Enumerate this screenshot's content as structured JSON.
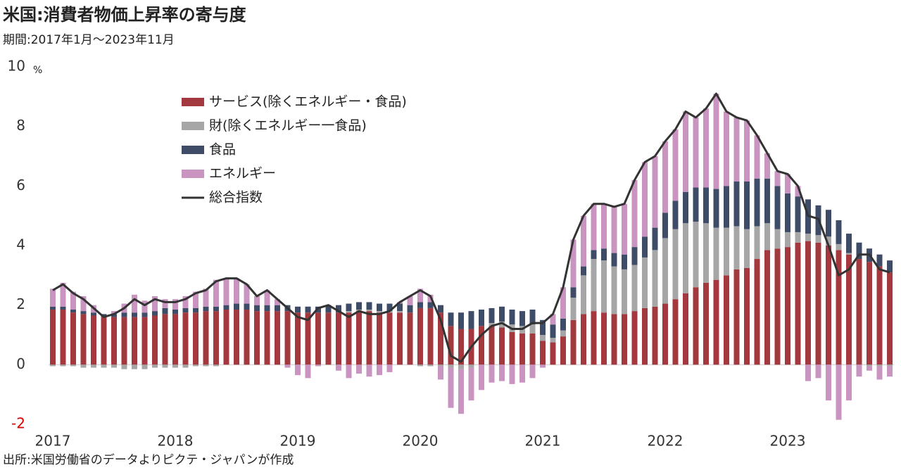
{
  "chart_data": {
    "type": "bar",
    "stacked": true,
    "title": "米国:消費者物価上昇率の寄与度",
    "subtitle": "期間:2017年1月〜2023年11月",
    "y_unit": "%",
    "source": "出所:米国労働省のデータよりピクテ・ジャパンが作成",
    "ylim": [
      -2,
      10
    ],
    "yticks": [
      -2,
      0,
      2,
      4,
      6,
      8,
      10
    ],
    "categories": [
      "2017",
      null,
      null,
      null,
      null,
      null,
      null,
      null,
      null,
      null,
      null,
      null,
      "2018",
      null,
      null,
      null,
      null,
      null,
      null,
      null,
      null,
      null,
      null,
      null,
      "2019",
      null,
      null,
      null,
      null,
      null,
      null,
      null,
      null,
      null,
      null,
      null,
      "2020",
      null,
      null,
      null,
      null,
      null,
      null,
      null,
      null,
      null,
      null,
      null,
      "2021",
      null,
      null,
      null,
      null,
      null,
      null,
      null,
      null,
      null,
      null,
      null,
      "2022",
      null,
      null,
      null,
      null,
      null,
      null,
      null,
      null,
      null,
      null,
      null,
      "2023",
      null,
      null,
      null,
      null,
      null,
      null,
      null,
      null,
      null,
      null
    ],
    "series": [
      {
        "name": "サービス(除くエネルギー・食品)",
        "color": "#a3393e",
        "values": [
          1.85,
          1.85,
          1.75,
          1.7,
          1.65,
          1.6,
          1.6,
          1.6,
          1.6,
          1.6,
          1.65,
          1.7,
          1.7,
          1.75,
          1.75,
          1.8,
          1.8,
          1.85,
          1.85,
          1.85,
          1.8,
          1.8,
          1.8,
          1.8,
          1.75,
          1.75,
          1.75,
          1.75,
          1.75,
          1.75,
          1.8,
          1.8,
          1.75,
          1.75,
          1.75,
          1.75,
          1.9,
          1.9,
          1.75,
          1.3,
          1.2,
          1.2,
          1.3,
          1.3,
          1.25,
          1.1,
          1.05,
          1.05,
          0.8,
          0.75,
          0.95,
          1.5,
          1.7,
          1.8,
          1.75,
          1.7,
          1.7,
          1.8,
          1.9,
          1.95,
          2.05,
          2.2,
          2.4,
          2.6,
          2.75,
          2.85,
          3.0,
          3.2,
          3.25,
          3.55,
          3.85,
          3.9,
          3.95,
          4.1,
          4.15,
          4.1,
          4.0,
          3.85,
          3.7,
          3.55,
          3.45,
          3.3,
          3.1
        ]
      },
      {
        "name": "財(除くエネルギー一食品)",
        "color": "#a6a6a6",
        "values": [
          -0.05,
          -0.05,
          -0.05,
          -0.1,
          -0.1,
          -0.1,
          -0.1,
          -0.15,
          -0.15,
          -0.15,
          -0.1,
          -0.1,
          -0.1,
          -0.1,
          -0.05,
          -0.05,
          -0.05,
          0,
          0,
          0,
          0,
          0,
          0,
          0,
          0,
          0,
          0,
          0,
          0,
          0.05,
          0.05,
          0.05,
          0.05,
          0.05,
          0.05,
          0,
          -0.05,
          -0.05,
          -0.05,
          -0.1,
          -0.15,
          -0.1,
          0,
          0.1,
          0.2,
          0.25,
          0.25,
          0.3,
          0.2,
          0.15,
          0.2,
          0.75,
          1.3,
          1.75,
          1.75,
          1.6,
          1.5,
          1.55,
          1.7,
          1.9,
          2.2,
          2.35,
          2.35,
          2.2,
          2.0,
          1.75,
          1.6,
          1.45,
          1.3,
          1.1,
          0.9,
          0.65,
          0.5,
          0.35,
          0.25,
          0.25,
          0.3,
          0.2,
          0.05,
          0,
          -0.05,
          -0.05,
          -0.05
        ]
      },
      {
        "name": "食品",
        "color": "#3e4c68",
        "values": [
          0.1,
          0.1,
          0.1,
          0.1,
          0.1,
          0.1,
          0.1,
          0.15,
          0.15,
          0.15,
          0.15,
          0.2,
          0.15,
          0.15,
          0.15,
          0.15,
          0.15,
          0.15,
          0.2,
          0.2,
          0.2,
          0.2,
          0.2,
          0.2,
          0.2,
          0.2,
          0.2,
          0.25,
          0.25,
          0.25,
          0.25,
          0.25,
          0.25,
          0.25,
          0.25,
          0.25,
          0.2,
          0.2,
          0.25,
          0.45,
          0.55,
          0.6,
          0.55,
          0.5,
          0.5,
          0.5,
          0.5,
          0.5,
          0.5,
          0.45,
          0.4,
          0.35,
          0.3,
          0.3,
          0.4,
          0.45,
          0.5,
          0.6,
          0.7,
          0.75,
          0.85,
          0.95,
          1.05,
          1.15,
          1.2,
          1.3,
          1.4,
          1.5,
          1.6,
          1.6,
          1.5,
          1.45,
          1.3,
          1.2,
          1.15,
          1.0,
          0.9,
          0.8,
          0.65,
          0.55,
          0.45,
          0.4,
          0.4
        ]
      },
      {
        "name": "エネルギー",
        "color": "#c994c0",
        "values": [
          0.6,
          0.8,
          0.6,
          0.5,
          0.25,
          0,
          0.1,
          0.3,
          0.6,
          0.4,
          0.5,
          0.3,
          0.35,
          0.4,
          0.55,
          0.6,
          0.9,
          0.9,
          0.85,
          0.65,
          0.3,
          0.5,
          0.2,
          -0.1,
          -0.35,
          -0.45,
          -0.05,
          0,
          -0.2,
          -0.45,
          -0.3,
          -0.4,
          -0.35,
          -0.25,
          0.05,
          0.3,
          0.45,
          0.25,
          -0.45,
          -1.35,
          -1.5,
          -1.1,
          -0.85,
          -0.6,
          -0.55,
          -0.65,
          -0.6,
          -0.45,
          -0.1,
          0.35,
          1.05,
          1.6,
          1.7,
          1.55,
          1.5,
          1.55,
          1.7,
          2.25,
          2.5,
          2.4,
          2.4,
          2.4,
          2.7,
          2.35,
          2.65,
          3.2,
          2.5,
          2.15,
          2.05,
          1.45,
          0.85,
          0.5,
          0.65,
          0.35,
          -0.55,
          -0.45,
          -1.2,
          -1.85,
          -1.2,
          -0.4,
          -0.15,
          -0.45,
          -0.35
        ]
      },
      {
        "name": "総合指数",
        "type": "line",
        "color": "#333333",
        "values": [
          2.5,
          2.7,
          2.4,
          2.2,
          1.9,
          1.6,
          1.7,
          1.9,
          2.2,
          2.0,
          2.2,
          2.1,
          2.1,
          2.2,
          2.4,
          2.5,
          2.8,
          2.9,
          2.9,
          2.7,
          2.3,
          2.5,
          2.2,
          1.9,
          1.6,
          1.5,
          1.9,
          2.0,
          1.8,
          1.6,
          1.8,
          1.7,
          1.7,
          1.8,
          2.1,
          2.3,
          2.5,
          2.3,
          1.5,
          0.3,
          0.1,
          0.6,
          1.0,
          1.3,
          1.4,
          1.2,
          1.2,
          1.4,
          1.4,
          1.7,
          2.6,
          4.2,
          5.0,
          5.4,
          5.4,
          5.3,
          5.4,
          6.2,
          6.8,
          7.0,
          7.5,
          7.9,
          8.5,
          8.3,
          8.6,
          9.1,
          8.5,
          8.3,
          8.2,
          7.7,
          7.1,
          6.5,
          6.4,
          6.0,
          5.0,
          4.9,
          4.0,
          3.0,
          3.2,
          3.7,
          3.7,
          3.2,
          3.1
        ]
      }
    ]
  }
}
